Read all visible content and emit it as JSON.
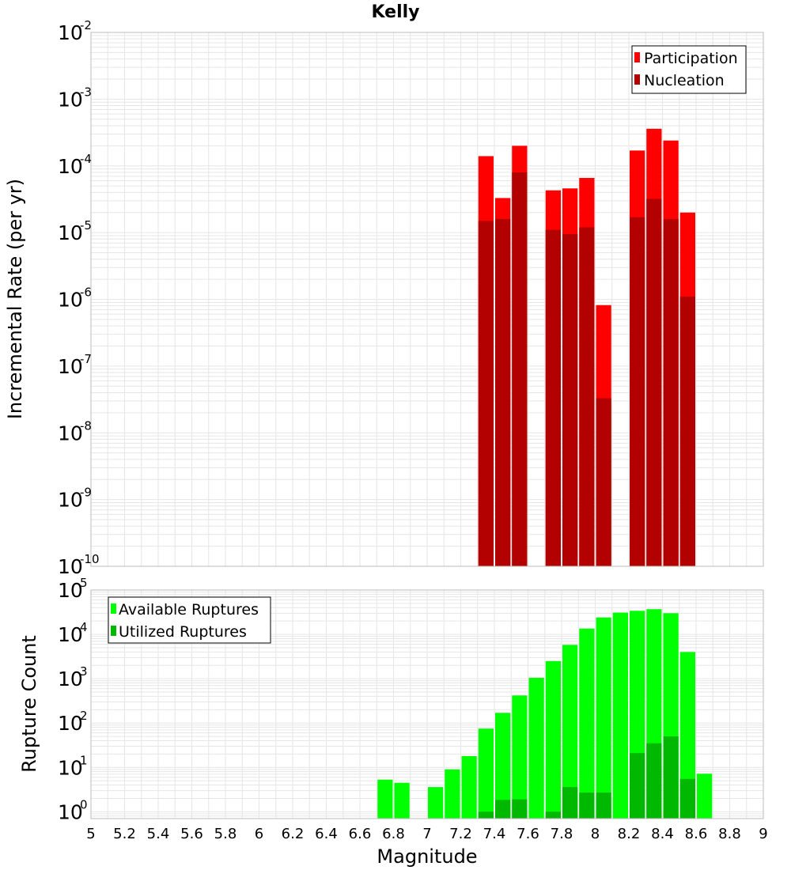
{
  "colors": {
    "participation": "#ff0000",
    "nucleation": "#b30000",
    "available": "#00ff00",
    "utilized": "#00b800",
    "grid": "#e6e6e6",
    "frame": "#bbbbbb"
  },
  "chart_data": [
    {
      "type": "bar",
      "title": "Kelly",
      "xlabel": "",
      "ylabel": "Incremental Rate (per yr)",
      "log_y": true,
      "xlim": [
        5,
        9
      ],
      "ylim": [
        1e-10,
        0.01
      ],
      "grid": true,
      "legend_position": "top-right",
      "yticks": [
        {
          "base": "10",
          "exp": "-10",
          "value": 1e-10
        },
        {
          "base": "10",
          "exp": "-9",
          "value": 1e-09
        },
        {
          "base": "10",
          "exp": "-8",
          "value": 1e-08
        },
        {
          "base": "10",
          "exp": "-7",
          "value": 1e-07
        },
        {
          "base": "10",
          "exp": "-6",
          "value": 1e-06
        },
        {
          "base": "10",
          "exp": "-5",
          "value": 1e-05
        },
        {
          "base": "10",
          "exp": "-4",
          "value": 0.0001
        },
        {
          "base": "10",
          "exp": "-3",
          "value": 0.001
        },
        {
          "base": "10",
          "exp": "-2",
          "value": 0.01
        }
      ],
      "series": [
        {
          "name": "Participation",
          "color": "#ff0000",
          "x": [
            7.35,
            7.45,
            7.55,
            7.75,
            7.85,
            7.95,
            8.05,
            8.25,
            8.35,
            8.45,
            8.55
          ],
          "values": [
            0.00014,
            3.3e-05,
            0.0002,
            4.3e-05,
            4.6e-05,
            6.6e-05,
            8.2e-07,
            0.00017,
            0.00036,
            0.00024,
            2e-05
          ]
        },
        {
          "name": "Nucleation",
          "color": "#b30000",
          "x": [
            7.35,
            7.45,
            7.55,
            7.75,
            7.85,
            7.95,
            8.05,
            8.25,
            8.35,
            8.45,
            8.55
          ],
          "values": [
            1.5e-05,
            1.6e-05,
            8e-05,
            1.1e-05,
            9.5e-06,
            1.2e-05,
            3.3e-08,
            1.7e-05,
            3.2e-05,
            1.6e-05,
            1.1e-06
          ]
        }
      ]
    },
    {
      "type": "bar",
      "title": "",
      "xlabel": "Magnitude",
      "ylabel": "Rupture Count",
      "log_y": true,
      "xlim": [
        5,
        9
      ],
      "ylim": [
        0.7,
        100000.0
      ],
      "grid": true,
      "legend_position": "top-left",
      "yticks": [
        {
          "base": "10",
          "exp": "0",
          "value": 1
        },
        {
          "base": "10",
          "exp": "1",
          "value": 10
        },
        {
          "base": "10",
          "exp": "2",
          "value": 100
        },
        {
          "base": "10",
          "exp": "3",
          "value": 1000
        },
        {
          "base": "10",
          "exp": "4",
          "value": 10000
        },
        {
          "base": "10",
          "exp": "5",
          "value": 100000
        }
      ],
      "xticks": [
        "5",
        "5.2",
        "5.4",
        "5.6",
        "5.8",
        "6",
        "6.2",
        "6.4",
        "6.6",
        "6.8",
        "7",
        "7.2",
        "7.4",
        "7.6",
        "7.8",
        "8",
        "8.2",
        "8.4",
        "8.6",
        "8.8",
        "9"
      ],
      "series": [
        {
          "name": "Available Ruptures",
          "color": "#00ff00",
          "x": [
            6.75,
            6.85,
            7.05,
            7.15,
            7.25,
            7.35,
            7.45,
            7.55,
            7.65,
            7.75,
            7.85,
            7.95,
            8.05,
            8.15,
            8.25,
            8.35,
            8.45,
            8.55,
            8.65
          ],
          "values": [
            5.3,
            4.5,
            3.6,
            9,
            18,
            75,
            170,
            420,
            1050,
            2500,
            5800,
            13500,
            24000,
            31000,
            34000,
            37000,
            30000,
            4000,
            7.2
          ]
        },
        {
          "name": "Utilized Ruptures",
          "color": "#00b800",
          "x": [
            7.35,
            7.45,
            7.55,
            7.75,
            7.85,
            7.95,
            8.05,
            8.25,
            8.35,
            8.45,
            8.55
          ],
          "values": [
            1,
            1.85,
            1.9,
            1,
            3.6,
            2.7,
            2.7,
            21,
            35,
            50,
            5.5
          ]
        }
      ]
    }
  ]
}
